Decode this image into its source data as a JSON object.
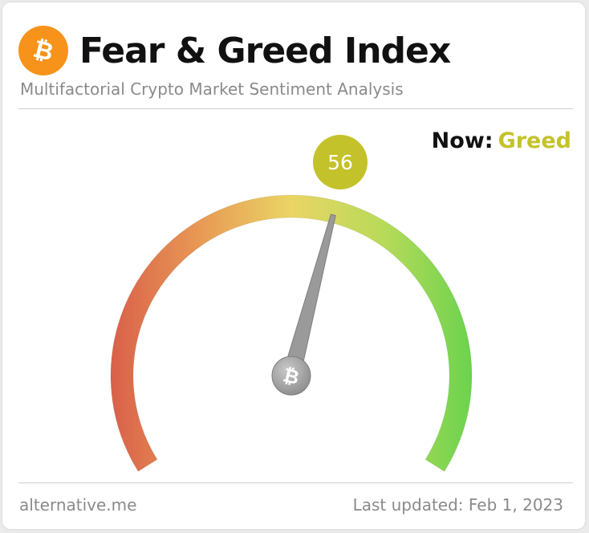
{
  "header": {
    "title": "Fear & Greed Index",
    "subtitle": "Multifactorial Crypto Market Sentiment Analysis",
    "logo_icon": "bitcoin-icon"
  },
  "status": {
    "now_label": "Now:",
    "now_value": "Greed",
    "now_color": "#c4c22a"
  },
  "gauge": {
    "value": 56,
    "value_text": "56",
    "min": 0,
    "max": 100,
    "badge_color": "#c4c22a",
    "needle_color": "#9a9a9a",
    "scale_colors": [
      "#d9604a",
      "#e89a55",
      "#ead565",
      "#b9da5a",
      "#6bd34e"
    ],
    "hub_icon": "bitcoin-icon"
  },
  "footer": {
    "source": "alternative.me",
    "last_updated": "Last updated: Feb 1, 2023"
  },
  "colors": {
    "bitcoin_orange": "#f7931a",
    "text_dark": "#111111",
    "text_muted": "#8a8a8a"
  }
}
